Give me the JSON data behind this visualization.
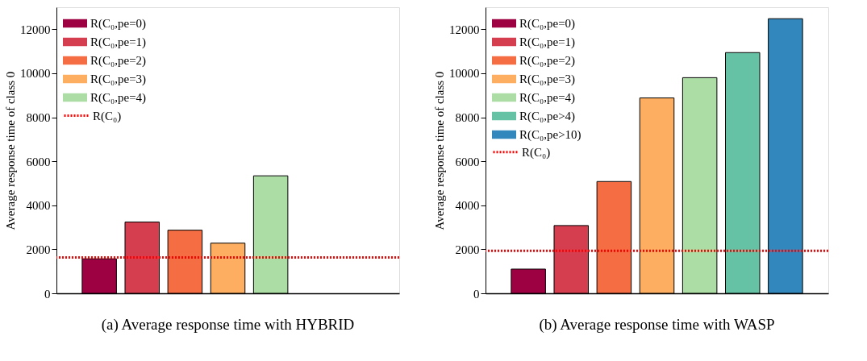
{
  "chart_data": [
    {
      "type": "bar",
      "categories": [
        null,
        null,
        null,
        null,
        null,
        null,
        null
      ],
      "ylabel": "Average response time of class 0",
      "ylim": [
        0,
        13000
      ],
      "yticks": [
        0,
        2000,
        4000,
        6000,
        8000,
        10000,
        12000
      ],
      "tick_labels": "y",
      "grid": false,
      "legend": "top left",
      "series": [
        {
          "name": "R(C₀,pe=0)",
          "color": "#9e0142",
          "values": [
            1570,
            null,
            null,
            null,
            null,
            null,
            null
          ]
        },
        {
          "name": "R(C₀,pe=1)",
          "color": "#d53e4f",
          "values": [
            null,
            3240,
            null,
            null,
            null,
            null,
            null
          ]
        },
        {
          "name": "R(C₀,pe=2)",
          "color": "#f46d43",
          "values": [
            null,
            null,
            2870,
            null,
            null,
            null,
            null
          ]
        },
        {
          "name": "R(C₀,pe=3)",
          "color": "#fdae61",
          "values": [
            null,
            null,
            null,
            2280,
            null,
            null,
            null
          ]
        },
        {
          "name": "R(C₀,pe=4)",
          "color": "#abdda4",
          "values": [
            null,
            null,
            null,
            null,
            5340,
            null,
            null
          ]
        }
      ],
      "ref_lines": [
        {
          "axis": "y",
          "value": 1630,
          "label": "R(C₀)",
          "color": "#ff0000",
          "line_style": "dotted"
        }
      ],
      "annotations": [
        "(a) Average response time with HYBRID"
      ]
    },
    {
      "type": "bar",
      "categories": [
        null,
        null,
        null,
        null,
        null,
        null,
        null
      ],
      "ylabel": "Average response time of class 0",
      "ylim": [
        0,
        13000
      ],
      "yticks": [
        0,
        2000,
        4000,
        6000,
        8000,
        10000,
        12000
      ],
      "tick_labels": "y",
      "grid": false,
      "legend": "top left",
      "series": [
        {
          "name": "R(C₀,pe=0)",
          "color": "#9e0142",
          "values": [
            1100,
            null,
            null,
            null,
            null,
            null,
            null
          ]
        },
        {
          "name": "R(C₀,pe=1)",
          "color": "#d53e4f",
          "values": [
            null,
            3080,
            null,
            null,
            null,
            null,
            null
          ]
        },
        {
          "name": "R(C₀,pe=2)",
          "color": "#f46d43",
          "values": [
            null,
            null,
            5080,
            null,
            null,
            null,
            null
          ]
        },
        {
          "name": "R(C₀,pe=3)",
          "color": "#fdae61",
          "values": [
            null,
            null,
            null,
            8880,
            null,
            null,
            null
          ]
        },
        {
          "name": "R(C₀,pe=4)",
          "color": "#abdda4",
          "values": [
            null,
            null,
            null,
            null,
            9800,
            null,
            null
          ]
        },
        {
          "name": "R(C₀,pe>4)",
          "color": "#66c2a5",
          "values": [
            null,
            null,
            null,
            null,
            null,
            10940,
            null
          ]
        },
        {
          "name": "R(C₀,pe>10)",
          "color": "#3288bd",
          "values": [
            null,
            null,
            null,
            null,
            null,
            null,
            12480
          ]
        }
      ],
      "ref_lines": [
        {
          "axis": "y",
          "value": 1930,
          "label": "R(C₀)",
          "color": "#ff0000",
          "line_style": "dotted"
        }
      ],
      "annotations": [
        "(b) Average response time with WASP"
      ]
    }
  ]
}
